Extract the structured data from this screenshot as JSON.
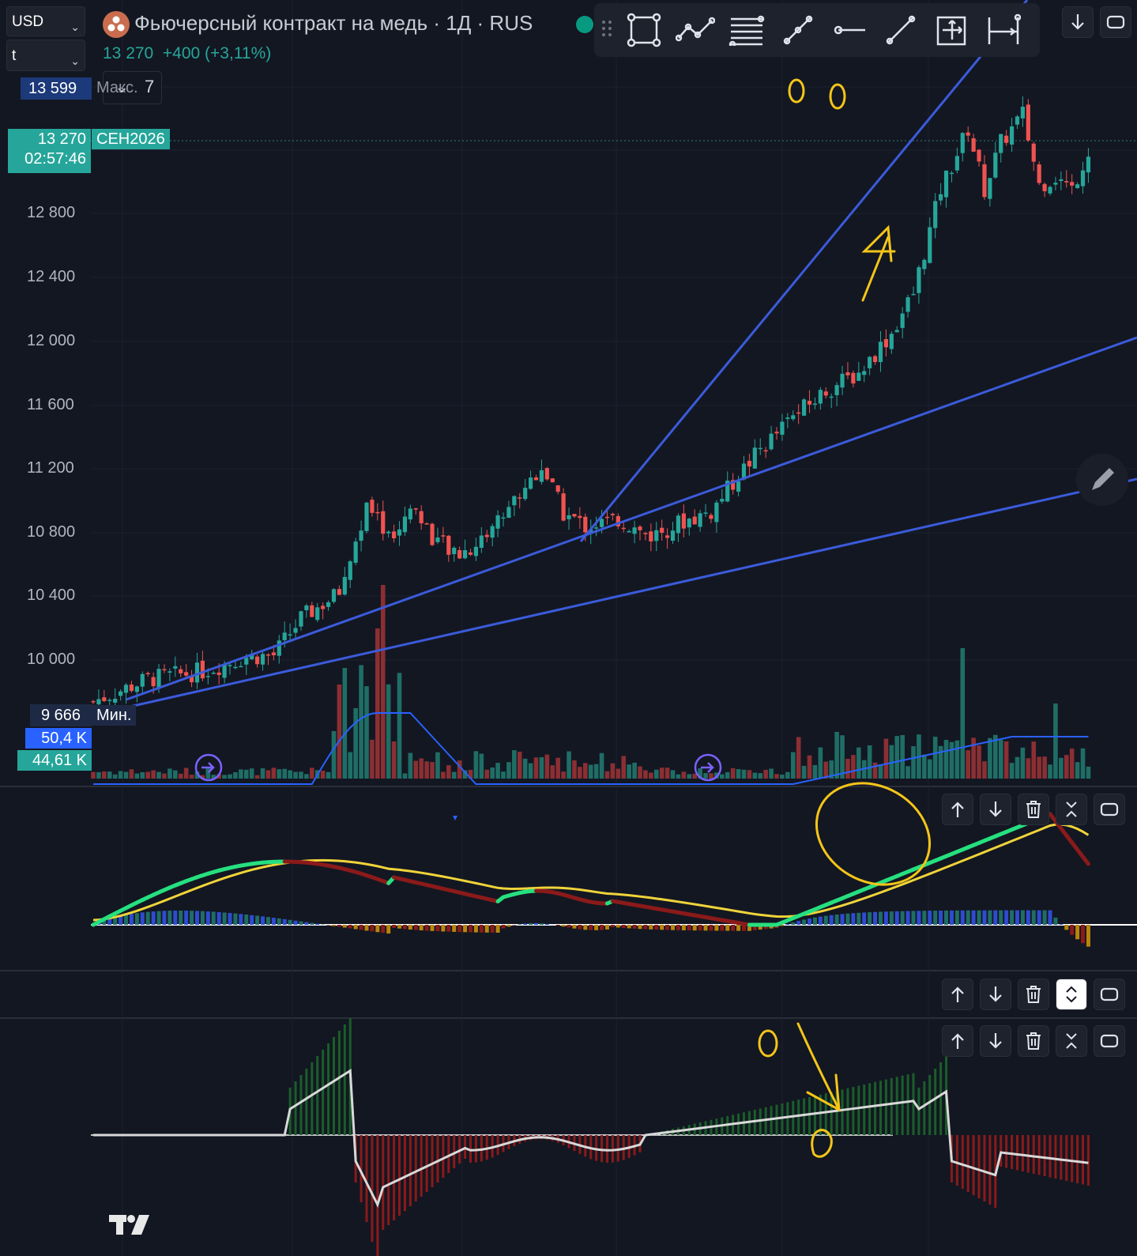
{
  "header": {
    "currency": "USD",
    "units": "t",
    "title": "Фьючерсный контракт на медь · 1Д · RUS",
    "price": "13 270",
    "change": "+400 (+3,11%)",
    "indicators_count": "7"
  },
  "price_axis": {
    "labels": [
      "12 800",
      "12 400",
      "12 000",
      "11 600",
      "11 200",
      "10 800",
      "10 400",
      "10 000"
    ],
    "max_value": "13 599",
    "max_label": "Макс.",
    "min_value": "9 666",
    "min_label": "Мин.",
    "last_price": "13 270",
    "countdown": "02:57:46",
    "contract": "СЕН2026",
    "volume_1": "50,4 K",
    "volume_2": "44,61 K"
  },
  "annotations": {
    "top_marks": [
      "0",
      "0"
    ],
    "arrow_digit": "4",
    "osc_mark": "0"
  },
  "colors": {
    "background": "#131722",
    "up": "#26a69a",
    "down": "#ef5350",
    "trendline": "#3b5bdb",
    "macd_line_up": "#26e07f",
    "macd_line_down": "#8b1a1a",
    "signal": "#f0d43a",
    "annotation": "#f5c518"
  },
  "drawing_toolbar": {
    "tools": [
      "drag-handle-icon",
      "rectangle-icon",
      "path-icon",
      "fib-levels-icon",
      "trendline-icon",
      "horizontal-ray-icon",
      "ray-icon",
      "measure-icon",
      "date-range-icon"
    ]
  },
  "pane_controls": [
    "move-up-icon",
    "move-down-icon",
    "delete-icon",
    "collapse-icon",
    "maximize-icon"
  ],
  "logo": "TradingView"
}
